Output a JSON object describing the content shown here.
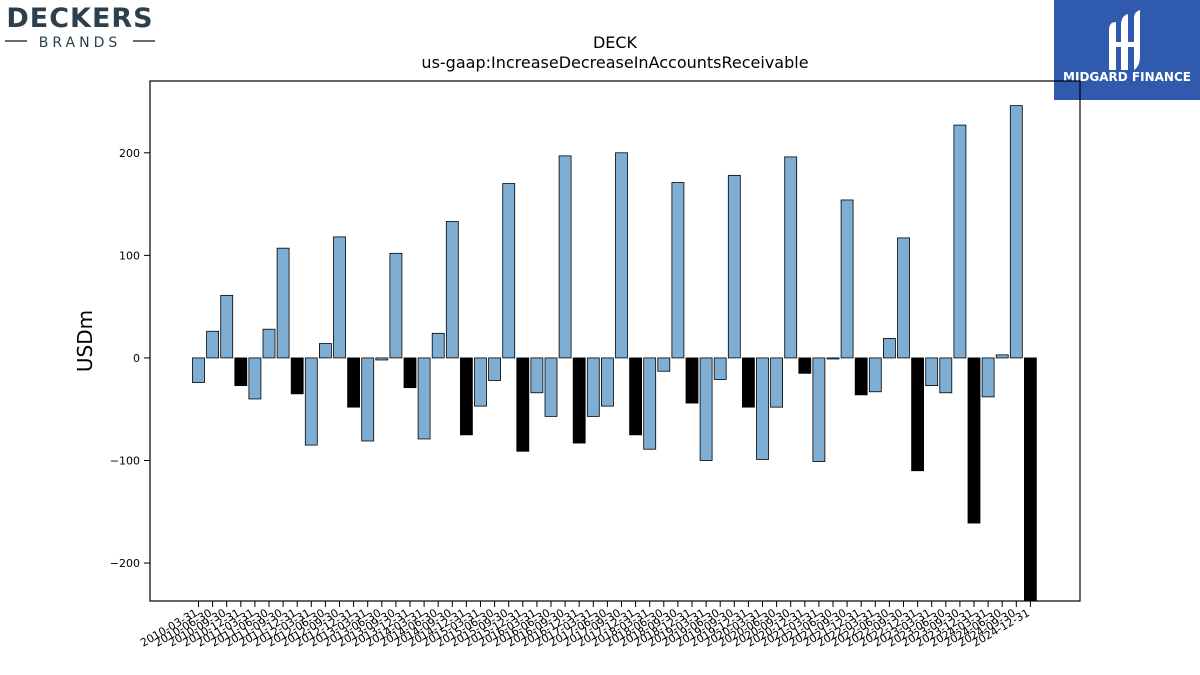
{
  "brand_left": {
    "line1": "DECKERS",
    "line2": "BRANDS"
  },
  "brand_right": {
    "name": "MIDGARD FINANCE",
    "bg_color": "#2f5aae"
  },
  "colors": {
    "positive": "#7eaed3",
    "negative": "#000000",
    "edge": "#000000"
  },
  "chart_data": {
    "type": "bar",
    "title": "DECK",
    "subtitle": "us-gaap:IncreaseDecreaseInAccountsReceivable",
    "xlabel": "",
    "ylabel": "USDm",
    "ylim": [
      -237,
      270
    ],
    "yticks": [
      -200,
      -100,
      0,
      100,
      200
    ],
    "ytick_labels": [
      "−200",
      "−100",
      "0",
      "100",
      "200"
    ],
    "grid": false,
    "categories": [
      "2010-03-31",
      "2010-06-30",
      "2010-09-30",
      "2010-12-31",
      "2011-03-31",
      "2011-06-30",
      "2011-09-30",
      "2011-12-31",
      "2012-03-31",
      "2012-06-30",
      "2012-09-30",
      "2012-12-31",
      "2013-03-31",
      "2013-06-30",
      "2013-09-30",
      "2013-12-31",
      "2014-03-31",
      "2014-06-30",
      "2014-09-30",
      "2014-12-31",
      "2015-03-31",
      "2015-06-30",
      "2015-09-30",
      "2015-12-31",
      "2016-03-31",
      "2016-06-30",
      "2016-09-30",
      "2016-12-31",
      "2017-03-31",
      "2017-06-30",
      "2017-09-30",
      "2017-12-31",
      "2018-03-31",
      "2018-06-30",
      "2018-09-30",
      "2018-12-31",
      "2019-03-31",
      "2019-06-30",
      "2019-09-30",
      "2019-12-31",
      "2020-03-31",
      "2020-06-30",
      "2020-09-30",
      "2020-12-31",
      "2021-03-31",
      "2021-06-30",
      "2021-09-30",
      "2021-12-31",
      "2022-03-31",
      "2022-06-30",
      "2022-09-30",
      "2022-12-31",
      "2023-03-31",
      "2023-06-30",
      "2023-09-30",
      "2023-12-31",
      "2024-03-31",
      "2024-06-30",
      "2024-09-30",
      "2024-12-31"
    ],
    "values": [
      -24,
      26,
      61,
      -27,
      -40,
      28,
      107,
      -35,
      -85,
      14,
      118,
      -48,
      -81,
      -2,
      102,
      -29,
      -79,
      24,
      133,
      -75,
      -47,
      -22,
      170,
      -91,
      -34,
      -57,
      197,
      -83,
      -57,
      -47,
      200,
      -75,
      -89,
      -13,
      171,
      -44,
      -100,
      -21,
      178,
      -48,
      -99,
      -48,
      196,
      -15,
      -101,
      -1,
      154,
      -36,
      -33,
      19,
      117,
      -110,
      -27,
      -34,
      227,
      -161,
      -38,
      3,
      246,
      -237
    ]
  }
}
